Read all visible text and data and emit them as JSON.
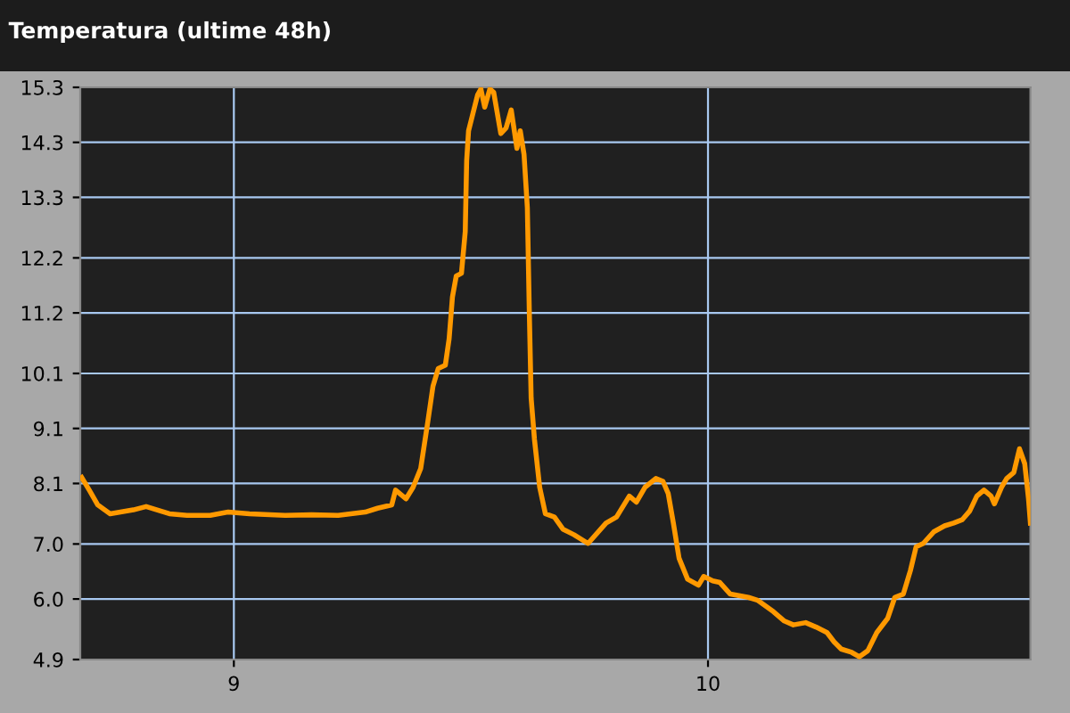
{
  "chart_data": {
    "type": "line",
    "title": "Temperatura (ultime 48h)",
    "x": [
      8.679,
      8.695,
      8.713,
      8.739,
      8.788,
      8.815,
      8.864,
      8.901,
      8.95,
      8.988,
      9.033,
      9.108,
      9.164,
      9.22,
      9.277,
      9.303,
      9.333,
      9.341,
      9.363,
      9.378,
      9.394,
      9.409,
      9.42,
      9.431,
      9.446,
      9.454,
      9.461,
      9.469,
      9.48,
      9.488,
      9.491,
      9.495,
      9.514,
      9.521,
      9.529,
      9.54,
      9.548,
      9.563,
      9.574,
      9.585,
      9.597,
      9.604,
      9.612,
      9.619,
      9.623,
      9.627,
      9.634,
      9.645,
      9.657,
      9.676,
      9.694,
      9.717,
      9.747,
      9.785,
      9.807,
      9.834,
      9.849,
      9.867,
      9.89,
      9.905,
      9.916,
      9.927,
      9.939,
      9.957,
      9.98,
      9.991,
      10.01,
      10.025,
      10.047,
      10.085,
      10.104,
      10.138,
      10.161,
      10.18,
      10.206,
      10.228,
      10.251,
      10.266,
      10.281,
      10.303,
      10.319,
      10.337,
      10.356,
      10.379,
      10.394,
      10.412,
      10.427,
      10.439,
      10.454,
      10.476,
      10.499,
      10.518,
      10.536,
      10.552,
      10.567,
      10.582,
      10.597,
      10.604,
      10.619,
      10.63,
      10.645,
      10.657,
      10.668,
      10.676,
      10.68
    ],
    "series": [
      {
        "color": "#ff9900",
        "values": [
          8.21,
          7.98,
          7.71,
          7.55,
          7.62,
          7.68,
          7.55,
          7.52,
          7.52,
          7.58,
          7.55,
          7.52,
          7.53,
          7.52,
          7.58,
          7.65,
          7.71,
          7.98,
          7.82,
          8.03,
          8.37,
          9.22,
          9.87,
          10.19,
          10.25,
          10.73,
          11.49,
          11.87,
          11.92,
          12.68,
          13.97,
          14.51,
          15.16,
          15.27,
          14.94,
          15.27,
          15.21,
          14.46,
          14.56,
          14.89,
          14.19,
          14.51,
          14.08,
          13.11,
          11.27,
          9.65,
          8.9,
          8.03,
          7.55,
          7.49,
          7.27,
          7.17,
          7.01,
          7.38,
          7.49,
          7.87,
          7.76,
          8.03,
          8.19,
          8.14,
          7.92,
          7.38,
          6.74,
          6.36,
          6.25,
          6.41,
          6.33,
          6.3,
          6.09,
          6.03,
          5.98,
          5.77,
          5.6,
          5.53,
          5.57,
          5.49,
          5.39,
          5.22,
          5.09,
          5.03,
          4.95,
          5.06,
          5.39,
          5.65,
          6.03,
          6.09,
          6.52,
          6.95,
          7.01,
          7.22,
          7.33,
          7.38,
          7.44,
          7.6,
          7.87,
          7.98,
          7.87,
          7.73,
          8.03,
          8.19,
          8.3,
          8.73,
          8.46,
          7.82,
          7.38
        ]
      }
    ],
    "xlim": [
      8.676,
      10.68
    ],
    "xticks": [
      9,
      10
    ],
    "ylim": [
      4.9,
      15.3
    ],
    "yticks": [
      {
        "value": 4.9,
        "label": "4.9"
      },
      {
        "value": 6.0,
        "label": "6.0"
      },
      {
        "value": 7.0,
        "label": "7.0"
      },
      {
        "value": 8.1,
        "label": "8.1"
      },
      {
        "value": 9.1,
        "label": "9.1"
      },
      {
        "value": 10.1,
        "label": "10.1"
      },
      {
        "value": 11.2,
        "label": "11.2"
      },
      {
        "value": 12.2,
        "label": "12.2"
      },
      {
        "value": 13.3,
        "label": "13.3"
      },
      {
        "value": 14.3,
        "label": "14.3"
      },
      {
        "value": 15.3,
        "label": "15.3"
      }
    ],
    "grid": true,
    "marker": "none",
    "line_style": "solid"
  }
}
